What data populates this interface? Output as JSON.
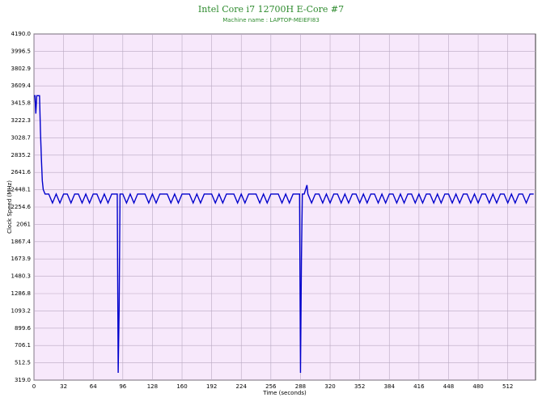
{
  "chart_data": {
    "type": "line",
    "title": "Intel Core i7 12700H E-Core #7",
    "subtitle": "Machine name : LAPTOP-MEIEFI83",
    "x_label": "Time (seconds)",
    "y_label": "Clock Speed (MHz)",
    "xlim": [
      0,
      542
    ],
    "ylim": [
      319,
      4190
    ],
    "xticks": [
      0,
      32,
      64,
      96,
      128,
      160,
      192,
      224,
      256,
      288,
      320,
      352,
      384,
      416,
      448,
      480,
      512
    ],
    "yticks": [
      {
        "value": 319,
        "label": "319.0"
      },
      512.5,
      706.1,
      899.6,
      1093.2,
      1286.8,
      1480.3,
      1673.9,
      1867.4,
      2061,
      2254.6,
      2448.1,
      2641.6,
      2835.2,
      3028.7,
      3222.3,
      3415.8,
      3609.4,
      3802.9,
      3996.5,
      {
        "value": 4190,
        "label": "4190.0"
      }
    ],
    "grid": true,
    "background": "#f7e8fb",
    "series": [
      {
        "color": "#0000cc",
        "x": [
          0,
          1,
          2,
          3,
          4,
          5,
          6,
          7,
          8,
          9,
          10,
          12,
          16,
          20,
          24,
          28,
          32,
          36,
          40,
          44,
          48,
          52,
          56,
          60,
          64,
          68,
          72,
          76,
          80,
          84,
          88,
          90,
          91,
          92,
          93,
          96,
          100,
          104,
          108,
          112,
          116,
          120,
          124,
          128,
          132,
          136,
          140,
          144,
          148,
          152,
          156,
          160,
          164,
          168,
          172,
          176,
          180,
          184,
          188,
          192,
          196,
          200,
          204,
          208,
          212,
          216,
          220,
          224,
          228,
          232,
          236,
          240,
          244,
          248,
          252,
          256,
          260,
          264,
          268,
          272,
          276,
          280,
          284,
          287,
          288,
          289,
          290,
          292,
          295,
          296,
          300,
          304,
          308,
          312,
          316,
          320,
          324,
          328,
          332,
          336,
          340,
          344,
          348,
          352,
          356,
          360,
          364,
          368,
          372,
          376,
          380,
          384,
          388,
          392,
          396,
          400,
          404,
          408,
          412,
          416,
          420,
          424,
          428,
          432,
          436,
          440,
          444,
          448,
          452,
          456,
          460,
          464,
          468,
          472,
          476,
          480,
          484,
          488,
          492,
          496,
          500,
          504,
          508,
          512,
          516,
          520,
          524,
          528,
          532,
          536,
          540
        ],
        "values": [
          3500,
          3500,
          3300,
          3500,
          3500,
          3500,
          3500,
          3100,
          2800,
          2550,
          2450,
          2400,
          2400,
          2300,
          2400,
          2300,
          2400,
          2400,
          2300,
          2400,
          2400,
          2300,
          2400,
          2300,
          2400,
          2400,
          2300,
          2400,
          2300,
          2400,
          2400,
          2400,
          400,
          1100,
          2400,
          2400,
          2300,
          2400,
          2300,
          2400,
          2400,
          2400,
          2300,
          2400,
          2300,
          2400,
          2400,
          2400,
          2300,
          2400,
          2300,
          2400,
          2400,
          2400,
          2300,
          2400,
          2300,
          2400,
          2400,
          2400,
          2300,
          2400,
          2300,
          2400,
          2400,
          2400,
          2300,
          2400,
          2300,
          2400,
          2400,
          2400,
          2300,
          2400,
          2300,
          2400,
          2400,
          2400,
          2300,
          2400,
          2300,
          2400,
          2400,
          2400,
          400,
          1650,
          2400,
          2400,
          2500,
          2400,
          2300,
          2400,
          2400,
          2300,
          2400,
          2300,
          2400,
          2400,
          2300,
          2400,
          2300,
          2400,
          2400,
          2300,
          2400,
          2300,
          2400,
          2400,
          2300,
          2400,
          2300,
          2400,
          2400,
          2300,
          2400,
          2300,
          2400,
          2400,
          2300,
          2400,
          2300,
          2400,
          2400,
          2300,
          2400,
          2300,
          2400,
          2400,
          2300,
          2400,
          2300,
          2400,
          2400,
          2300,
          2400,
          2300,
          2400,
          2400,
          2300,
          2400,
          2300,
          2400,
          2400,
          2300,
          2400,
          2300,
          2400,
          2400,
          2300,
          2400,
          2400
        ]
      }
    ]
  }
}
